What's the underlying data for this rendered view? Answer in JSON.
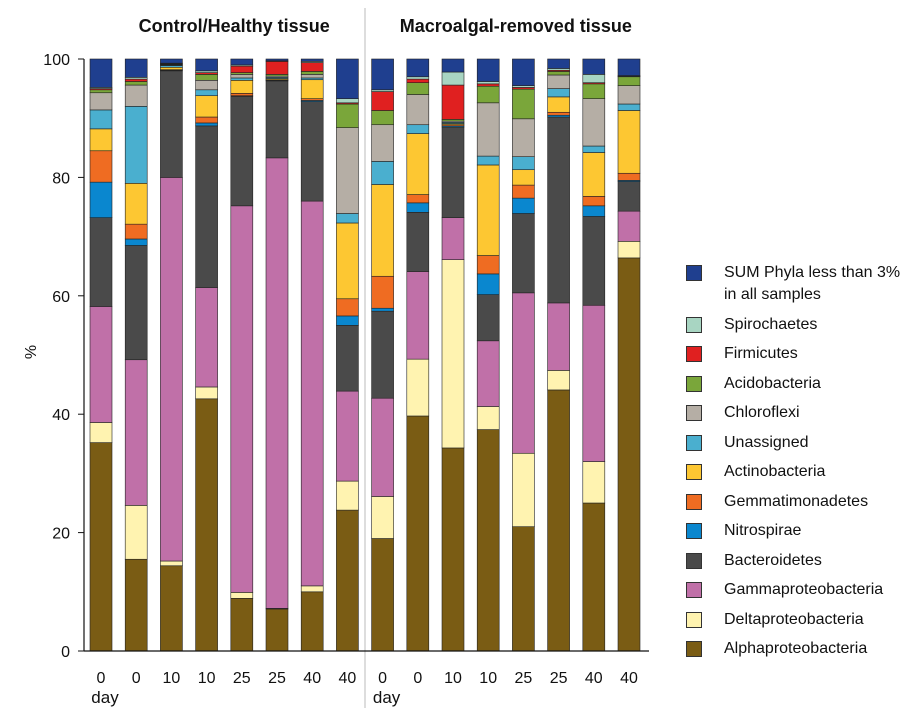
{
  "chart_data": {
    "type": "stacked_bar",
    "y_label": "%",
    "panels": [
      {
        "title": "Control/Healthy tissue",
        "x_label": "day"
      },
      {
        "title": "Macroalgal-removed tissue",
        "x_label": "day"
      }
    ],
    "categories": [
      "0",
      "0",
      "10",
      "10",
      "25",
      "25",
      "40",
      "40",
      "0",
      "0",
      "10",
      "10",
      "25",
      "25",
      "40",
      "40"
    ],
    "ylim": [
      0,
      100
    ],
    "yticks": [
      0,
      20,
      40,
      60,
      80,
      100
    ],
    "series": [
      {
        "name": "Alphaproteobacteria",
        "color": "#7a5c14",
        "values": [
          35.2,
          15.5,
          14.4,
          42.6,
          8.9,
          7.1,
          10,
          23.8,
          19,
          39.7,
          34.3,
          37.4,
          21,
          44.1,
          25,
          66.4
        ]
      },
      {
        "name": "Deltaproteobacteria",
        "color": "#fff3b0",
        "values": [
          3.4,
          9.1,
          0.8,
          2,
          1,
          0.1,
          1,
          4.9,
          7.1,
          9.6,
          31.8,
          3.9,
          12.4,
          3.3,
          7,
          2.8
        ]
      },
      {
        "name": "Gammaproteobacteria",
        "color": "#c070a8",
        "values": [
          19.6,
          24.6,
          64.8,
          16.8,
          65.3,
          76.1,
          65,
          15.2,
          16.6,
          14.8,
          7.1,
          11.1,
          27.1,
          11.4,
          26.4,
          5.1
        ]
      },
      {
        "name": "Bacteroidetes",
        "color": "#4a4a4a",
        "values": [
          15,
          19.3,
          18,
          27.3,
          18.5,
          13,
          16.8,
          11.1,
          14.7,
          10,
          15.3,
          7.8,
          13.4,
          31.4,
          15,
          5
        ]
      },
      {
        "name": "Nitrospirae",
        "color": "#0a87cf",
        "values": [
          6,
          1.1,
          0.1,
          0.5,
          0.1,
          0.1,
          0.2,
          1.6,
          0.5,
          1.6,
          0.2,
          3.5,
          2.6,
          0.3,
          1.8,
          0.2
        ]
      },
      {
        "name": "Gemmatimonadetes",
        "color": "#ef6c22",
        "values": [
          5.3,
          2.5,
          0.1,
          1,
          0.4,
          0.1,
          0.3,
          2.9,
          5.4,
          1.4,
          0.2,
          3.1,
          2.2,
          0.5,
          1.6,
          1.2
        ]
      },
      {
        "name": "Actinobacteria",
        "color": "#fdc732",
        "values": [
          3.7,
          6.9,
          0.4,
          3.6,
          2.2,
          0.2,
          3.2,
          12.8,
          15.5,
          10.3,
          0.2,
          15.3,
          2.6,
          2.6,
          7.4,
          10.6
        ]
      },
      {
        "name": "Unassigned",
        "color": "#4aafcf",
        "values": [
          3.2,
          13,
          0.3,
          1,
          0.4,
          0.2,
          0.3,
          1.6,
          3.9,
          1.5,
          0.2,
          1.5,
          2.2,
          1.4,
          1.1,
          1.1
        ]
      },
      {
        "name": "Chloroflexi",
        "color": "#b5aea5",
        "values": [
          2.9,
          3.6,
          0.1,
          1.6,
          0.6,
          0.2,
          0.6,
          14.5,
          6.2,
          5.1,
          0.2,
          9,
          6.4,
          2.3,
          8,
          3.1
        ]
      },
      {
        "name": "Acidobacteria",
        "color": "#7aa63a",
        "values": [
          0.5,
          0.6,
          0.1,
          1,
          0.3,
          0.3,
          0.5,
          4,
          2.4,
          2,
          0.3,
          2.8,
          5,
          0.6,
          2.5,
          1.5
        ]
      },
      {
        "name": "Firmicutes",
        "color": "#e02020",
        "values": [
          0.2,
          0.4,
          0.1,
          0.3,
          1.1,
          2.2,
          1.5,
          0.2,
          3.2,
          0.6,
          5.8,
          0.4,
          0.3,
          0.2,
          0.2,
          0.1
        ]
      },
      {
        "name": "Spirochaetes",
        "color": "#a8d5c2",
        "values": [
          0.2,
          0.3,
          0.1,
          0.3,
          0.2,
          0.1,
          0.2,
          0.7,
          0.3,
          0.4,
          2.2,
          0.4,
          0.3,
          0.3,
          1.4,
          0.1
        ]
      },
      {
        "name": "SUM Phyla less than 3% in all samples",
        "color": "#1f3f8f",
        "values": [
          4.8,
          3.1,
          0.7,
          2,
          1,
          0.3,
          0.4,
          6.7,
          5.2,
          3,
          2.2,
          3.8,
          4.5,
          1.6,
          2.6,
          2.8
        ]
      }
    ]
  }
}
